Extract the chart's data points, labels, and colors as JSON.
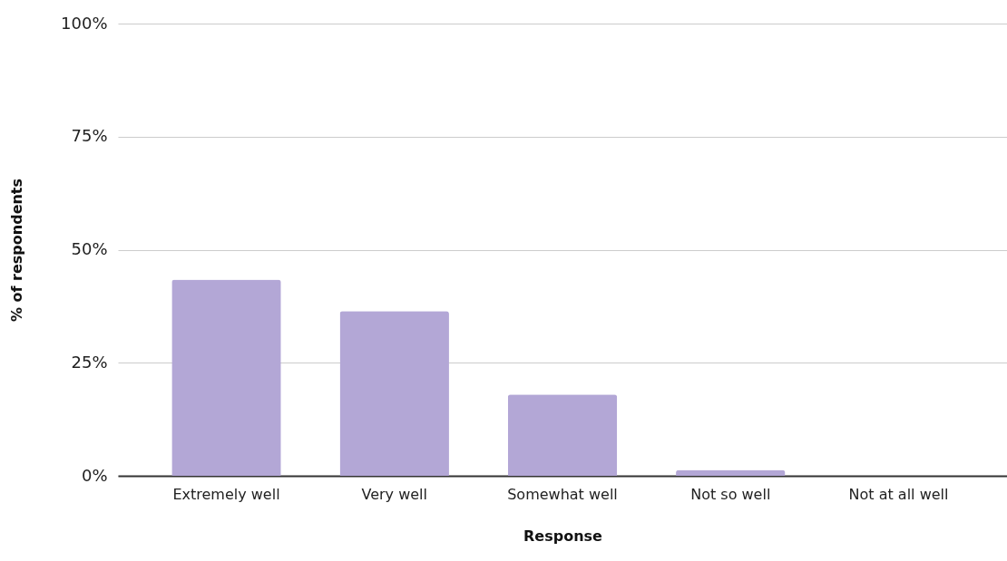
{
  "chart_data": {
    "type": "bar",
    "xlabel": "Response",
    "ylabel": "% of respondents",
    "categories": [
      "Extremely well",
      "Very well",
      "Somewhat well",
      "Not so well",
      "Not at all well"
    ],
    "values": [
      43.4,
      36.4,
      18.0,
      1.3,
      0
    ],
    "color": "#b3a7d6",
    "ylim": [
      0,
      100
    ],
    "yticks": [
      {
        "value": 0,
        "label": "0%"
      },
      {
        "value": 25,
        "label": "25%"
      },
      {
        "value": 50,
        "label": "50%"
      },
      {
        "value": 75,
        "label": "75%"
      },
      {
        "value": 100,
        "label": "100%"
      }
    ],
    "grid": "y"
  }
}
